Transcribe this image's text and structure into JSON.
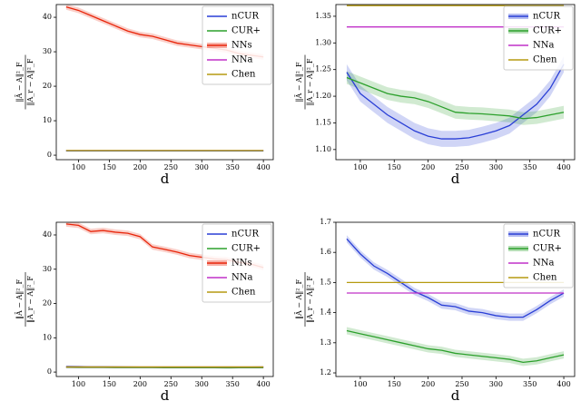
{
  "chart_data": [
    {
      "type": "line",
      "xlabel": "d",
      "ylabel": {
        "num": "‖Ā − A‖²_F",
        "den": "‖A_r − A‖²_F"
      },
      "x": [
        80,
        100,
        120,
        140,
        160,
        180,
        200,
        220,
        240,
        260,
        280,
        300,
        320,
        340,
        360,
        380,
        400
      ],
      "xlim": [
        64,
        416
      ],
      "xticks": [
        100,
        150,
        200,
        250,
        300,
        350,
        400
      ],
      "ylim": [
        -1.3,
        43.7
      ],
      "yticks": [
        0,
        10,
        20,
        30,
        40
      ],
      "series": [
        {
          "name": "nCUR",
          "color": "#2a3fd6",
          "values": [
            1.25,
            1.25,
            1.25,
            1.25,
            1.25,
            1.25,
            1.25,
            1.25,
            1.25,
            1.25,
            1.25,
            1.25,
            1.25,
            1.25,
            1.25,
            1.25,
            1.25
          ]
        },
        {
          "name": "CUR+",
          "color": "#2ca02c",
          "values": [
            1.3,
            1.3,
            1.3,
            1.3,
            1.3,
            1.3,
            1.3,
            1.3,
            1.3,
            1.3,
            1.3,
            1.3,
            1.3,
            1.3,
            1.3,
            1.3,
            1.3
          ]
        },
        {
          "name": "NNs",
          "color": "#e8250a",
          "band": 0.8,
          "values": [
            43,
            42,
            40.5,
            39,
            37.5,
            36,
            35,
            34.5,
            33.5,
            32.5,
            32,
            31.5,
            31,
            30.5,
            29.5,
            29,
            28.5
          ]
        },
        {
          "name": "NNa",
          "color": "#c030c8",
          "values": [
            1.33,
            1.33,
            1.33,
            1.33,
            1.33,
            1.33,
            1.33,
            1.33,
            1.33,
            1.33,
            1.33,
            1.33,
            1.33,
            1.33,
            1.33,
            1.33,
            1.33
          ]
        },
        {
          "name": "Chen",
          "color": "#b59a10",
          "values": [
            1.37,
            1.37,
            1.37,
            1.37,
            1.37,
            1.37,
            1.37,
            1.37,
            1.37,
            1.37,
            1.37,
            1.37,
            1.37,
            1.37,
            1.37,
            1.37,
            1.37
          ]
        }
      ]
    },
    {
      "type": "line",
      "xlabel": "d",
      "ylabel": {
        "num": "‖Ā − A‖²_F",
        "den": "‖A_r − A‖²_F"
      },
      "x": [
        80,
        100,
        120,
        140,
        160,
        180,
        200,
        220,
        240,
        260,
        280,
        300,
        320,
        340,
        360,
        380,
        400
      ],
      "xlim": [
        64,
        416
      ],
      "xticks": [
        100,
        150,
        200,
        250,
        300,
        350,
        400
      ],
      "ylim": [
        1.081,
        1.372
      ],
      "yticks": [
        {
          "value": 1.1,
          "label": "1.10"
        },
        1.15,
        {
          "value": 1.2,
          "label": "1.20"
        },
        1.25,
        {
          "value": 1.3,
          "label": "1.30"
        },
        1.35
      ],
      "series": [
        {
          "name": "nCUR",
          "color": "#2a3fd6",
          "band": 0.015,
          "values": [
            1.245,
            1.205,
            1.185,
            1.165,
            1.15,
            1.135,
            1.125,
            1.12,
            1.12,
            1.122,
            1.128,
            1.135,
            1.145,
            1.165,
            1.185,
            1.215,
            1.26
          ]
        },
        {
          "name": "CUR+",
          "color": "#2ca02c",
          "band": 0.012,
          "values": [
            1.235,
            1.225,
            1.215,
            1.205,
            1.2,
            1.197,
            1.19,
            1.18,
            1.17,
            1.168,
            1.167,
            1.165,
            1.163,
            1.158,
            1.16,
            1.165,
            1.17
          ]
        },
        {
          "name": "NNa",
          "color": "#c030c8",
          "values": [
            1.33,
            1.33,
            1.33,
            1.33,
            1.33,
            1.33,
            1.33,
            1.33,
            1.33,
            1.33,
            1.33,
            1.33,
            1.33,
            1.33,
            1.33,
            1.33,
            1.33
          ]
        },
        {
          "name": "Chen",
          "color": "#b59a10",
          "values": [
            1.37,
            1.37,
            1.37,
            1.37,
            1.37,
            1.37,
            1.37,
            1.37,
            1.37,
            1.37,
            1.37,
            1.37,
            1.37,
            1.37,
            1.37,
            1.37,
            1.37
          ]
        }
      ]
    },
    {
      "type": "line",
      "xlabel": "d",
      "ylabel": {
        "num": "‖Ā − A‖²_F",
        "den": "‖A_r − A‖²_F"
      },
      "x": [
        80,
        100,
        120,
        140,
        160,
        180,
        200,
        220,
        240,
        260,
        280,
        300,
        320,
        340,
        360,
        380,
        400
      ],
      "xlim": [
        64,
        416
      ],
      "xticks": [
        100,
        150,
        200,
        250,
        300,
        350,
        400
      ],
      "ylim": [
        -1.3,
        43.7
      ],
      "yticks": [
        0,
        10,
        20,
        30,
        40
      ],
      "series": [
        {
          "name": "nCUR",
          "color": "#2a3fd6",
          "values": [
            1.645,
            1.595,
            1.555,
            1.53,
            1.5,
            1.47,
            1.45,
            1.425,
            1.42,
            1.405,
            1.4,
            1.39,
            1.385,
            1.385,
            1.41,
            1.44,
            1.465
          ]
        },
        {
          "name": "CUR+",
          "color": "#2ca02c",
          "values": [
            1.34,
            1.33,
            1.32,
            1.31,
            1.3,
            1.29,
            1.28,
            1.275,
            1.265,
            1.26,
            1.255,
            1.25,
            1.245,
            1.235,
            1.24,
            1.25,
            1.26
          ]
        },
        {
          "name": "NNs",
          "color": "#e8250a",
          "band": 0.8,
          "values": [
            43.2,
            42.8,
            41,
            41.3,
            40.8,
            40.5,
            39.5,
            36.5,
            35.8,
            35,
            34,
            33.5,
            33,
            32.8,
            32,
            31.5,
            30.5
          ]
        },
        {
          "name": "NNa",
          "color": "#c030c8",
          "values": [
            1.465,
            1.465,
            1.465,
            1.465,
            1.465,
            1.465,
            1.465,
            1.465,
            1.465,
            1.465,
            1.465,
            1.465,
            1.465,
            1.465,
            1.465,
            1.465,
            1.465
          ]
        },
        {
          "name": "Chen",
          "color": "#b59a10",
          "values": [
            1.5,
            1.5,
            1.5,
            1.5,
            1.5,
            1.5,
            1.5,
            1.5,
            1.5,
            1.5,
            1.5,
            1.5,
            1.5,
            1.5,
            1.5,
            1.5,
            1.5
          ]
        }
      ]
    },
    {
      "type": "line",
      "xlabel": "d",
      "ylabel": {
        "num": "‖Ā − A‖²_F",
        "den": "‖A_r − A‖²_F"
      },
      "x": [
        80,
        100,
        120,
        140,
        160,
        180,
        200,
        220,
        240,
        260,
        280,
        300,
        320,
        340,
        360,
        380,
        400
      ],
      "xlim": [
        64,
        416
      ],
      "xticks": [
        100,
        150,
        200,
        250,
        300,
        350,
        400
      ],
      "ylim": [
        1.188,
        1.7
      ],
      "yticks": [
        1.2,
        1.3,
        1.4,
        1.5,
        1.6,
        1.7
      ],
      "series": [
        {
          "name": "nCUR",
          "color": "#2a3fd6",
          "band": 0.012,
          "values": [
            1.645,
            1.595,
            1.555,
            1.53,
            1.5,
            1.47,
            1.45,
            1.425,
            1.42,
            1.405,
            1.4,
            1.39,
            1.385,
            1.385,
            1.41,
            1.44,
            1.465
          ]
        },
        {
          "name": "CUR+",
          "color": "#2ca02c",
          "band": 0.012,
          "values": [
            1.34,
            1.33,
            1.32,
            1.31,
            1.3,
            1.29,
            1.28,
            1.275,
            1.265,
            1.26,
            1.255,
            1.25,
            1.245,
            1.235,
            1.24,
            1.25,
            1.26
          ]
        },
        {
          "name": "NNa",
          "color": "#c030c8",
          "values": [
            1.465,
            1.465,
            1.465,
            1.465,
            1.465,
            1.465,
            1.465,
            1.465,
            1.465,
            1.465,
            1.465,
            1.465,
            1.465,
            1.465,
            1.465,
            1.465,
            1.465
          ]
        },
        {
          "name": "Chen",
          "color": "#b59a10",
          "values": [
            1.5,
            1.5,
            1.5,
            1.5,
            1.5,
            1.5,
            1.5,
            1.5,
            1.5,
            1.5,
            1.5,
            1.5,
            1.5,
            1.5,
            1.5,
            1.5,
            1.5
          ]
        }
      ]
    }
  ]
}
